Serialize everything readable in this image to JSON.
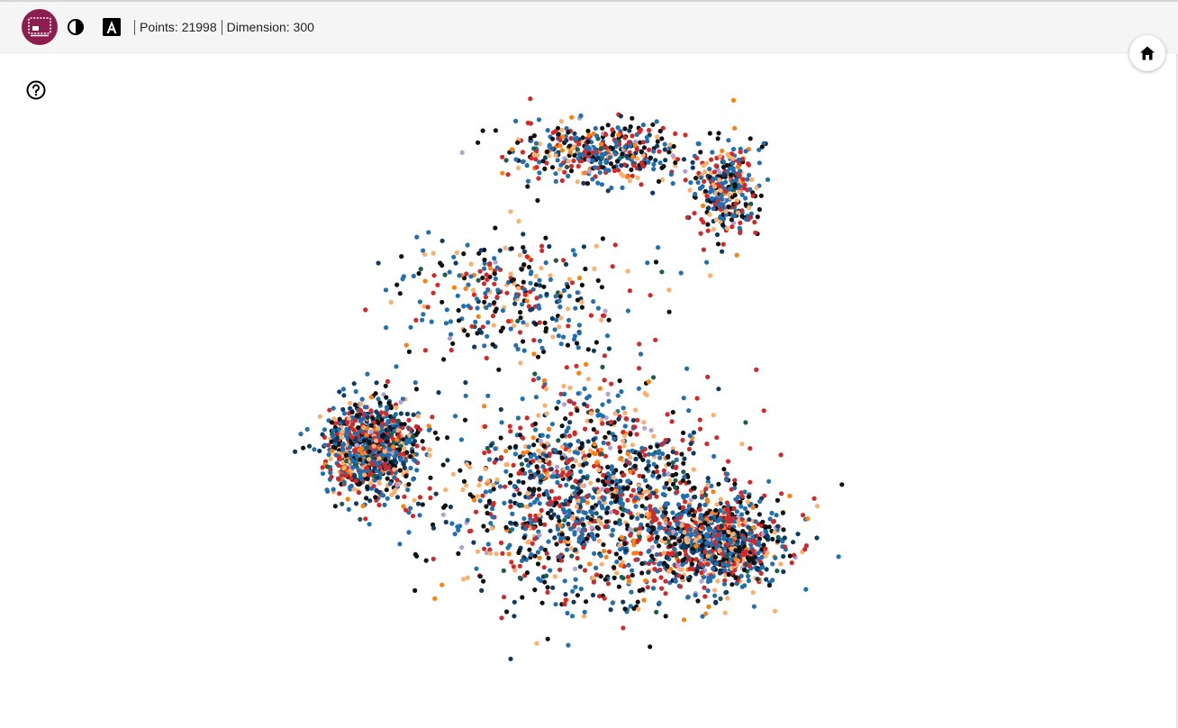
{
  "toolbar": {
    "logo_icon": "embedding-app-icon",
    "theme_icon": "dark-mode-toggle-icon",
    "font_icon": "font-toggle-icon",
    "points_label": "Points: 21998",
    "dimension_label": "Dimension: 300"
  },
  "help": {
    "icon": "help-icon"
  },
  "home": {
    "icon": "home-icon"
  },
  "colors": {
    "accent": "#8b1e4f",
    "palette": [
      "#1f6fb3",
      "#d62728",
      "#111111",
      "#fdae6b",
      "#0d3b66",
      "#ff7f0e",
      "#1b5e4a",
      "#b2a1d1"
    ]
  },
  "chart_data": {
    "type": "scatter",
    "title": "",
    "xlabel": "",
    "ylabel": "",
    "point_count": 21998,
    "legend": "none",
    "grid": false,
    "regions": [
      {
        "name": "",
        "center": [
          -6.0,
          -1.2
        ],
        "spread": [
          1.2,
          0.9
        ],
        "weight": 0.22
      },
      {
        "name": "",
        "center": [
          3.6,
          -3.2
        ],
        "spread": [
          1.6,
          0.9
        ],
        "weight": 0.2
      },
      {
        "name": "",
        "center": [
          0.0,
          -2.2
        ],
        "spread": [
          3.4,
          2.0
        ],
        "weight": 0.32
      },
      {
        "name": "",
        "center": [
          0.2,
          5.0
        ],
        "spread": [
          2.2,
          0.6
        ],
        "weight": 0.1
      },
      {
        "name": "",
        "center": [
          3.8,
          4.2
        ],
        "spread": [
          0.8,
          0.9
        ],
        "weight": 0.08
      },
      {
        "name": "",
        "center": [
          -2.0,
          2.0
        ],
        "spread": [
          3.0,
          1.2
        ],
        "weight": 0.08
      }
    ],
    "xlim": [
      -9,
      9
    ],
    "ylim": [
      -7,
      7
    ]
  }
}
